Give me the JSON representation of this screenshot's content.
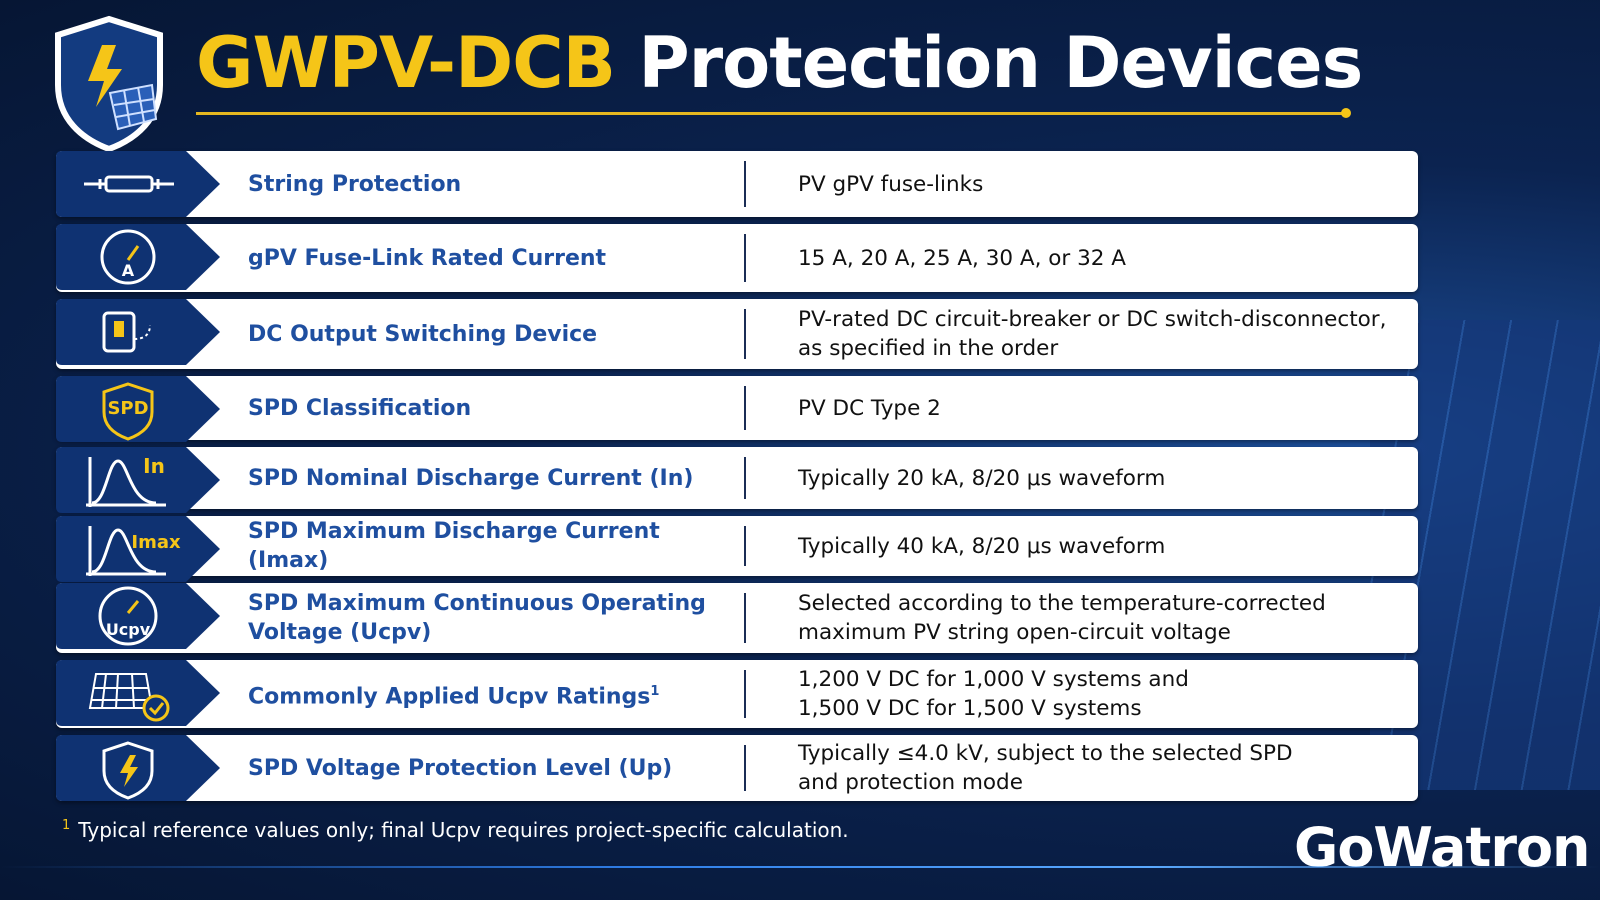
{
  "header": {
    "title_highlight": "GWPV-DCB",
    "title_rest": "Protection Devices"
  },
  "rows": [
    {
      "label": "String Protection",
      "value": [
        "PV gPV fuse-links"
      ]
    },
    {
      "icon_text": "A",
      "label": "gPV Fuse-Link Rated Current",
      "value": [
        "15 A, 20 A, 25 A, 30 A, or 32 A"
      ]
    },
    {
      "label": "DC Output Switching Device",
      "value": [
        "PV-rated DC circuit-breaker or DC switch-disconnector,",
        "as specified in the order"
      ]
    },
    {
      "icon_text": "SPD",
      "label": "SPD Classification",
      "value": [
        "PV DC Type 2"
      ]
    },
    {
      "icon_text": "In",
      "label": "SPD Nominal Discharge Current (In)",
      "value": [
        "Typically 20 kA, 8/20 μs waveform"
      ]
    },
    {
      "icon_text": "Imax",
      "label": "SPD Maximum Discharge Current (Imax)",
      "value": [
        "Typically 40 kA, 8/20 μs waveform"
      ]
    },
    {
      "icon_text": "Ucpv",
      "label": [
        "SPD Maximum Continuous Operating",
        "Voltage (Ucpv)"
      ],
      "value": [
        "Selected according to the temperature-corrected",
        "maximum PV string open-circuit voltage"
      ]
    },
    {
      "label": "Commonly Applied Ucpv Ratings",
      "label_sup": "1",
      "value": [
        "1,200 V DC for 1,000 V systems and",
        "1,500 V DC for 1,500 V systems"
      ]
    },
    {
      "label": "SPD Voltage Protection Level (Up)",
      "value": [
        "Typically ≤4.0 kV, subject to the selected SPD",
        "and protection mode"
      ]
    }
  ],
  "footnote": {
    "marker": "1",
    "text": "Typical reference values only; final Ucpv requires project-specific calculation."
  },
  "logo": "GoWatron"
}
